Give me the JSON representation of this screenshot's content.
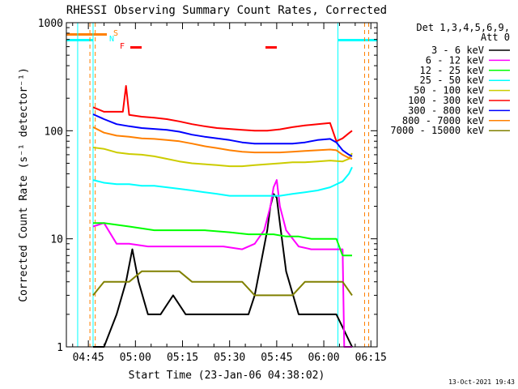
{
  "chart_data": {
    "type": "line",
    "title": "RHESSI Observing Summary Count Rates, Corrected",
    "xlabel": "Start Time (23-Jan-06 04:38:02)",
    "ylabel": "Corrected Count Rate (s⁻¹ detector⁻¹)",
    "yscale": "log",
    "ylim": [
      1,
      1000
    ],
    "xlim": [
      "04:38",
      "06:17"
    ],
    "x_ticks": [
      "04:45",
      "05:00",
      "05:15",
      "05:30",
      "05:45",
      "06:00",
      "06:15"
    ],
    "x_tick_minutes": [
      7,
      22,
      37,
      52,
      67,
      82,
      97
    ],
    "y_ticks": [
      "1",
      "10",
      "100",
      "1000"
    ],
    "y_tick_values": [
      1,
      10,
      100,
      1000
    ],
    "legend_title": "Det 1,3,4,5,6,9,",
    "legend_subtitle": "Att 0",
    "legend_position": "top-right",
    "series": [
      {
        "name": "3 - 6 keV",
        "color": "#000000",
        "x_min": [
          8.5,
          12,
          16,
          19,
          21,
          23,
          26,
          30,
          34,
          38,
          42,
          46,
          50,
          54,
          58,
          60,
          62,
          64,
          65,
          66,
          67,
          68,
          70,
          74,
          78,
          82,
          86,
          91
        ],
        "values": [
          1,
          1,
          2,
          4,
          8,
          4,
          2,
          2,
          3,
          2,
          2,
          2,
          2,
          2,
          2,
          3,
          6,
          12,
          20,
          26,
          24,
          14,
          5,
          2,
          2,
          2,
          2,
          1
        ]
      },
      {
        "name": "6 - 12 keV",
        "color": "#ff00ff",
        "x_min": [
          8.5,
          12,
          16,
          20,
          26,
          32,
          38,
          44,
          50,
          56,
          60,
          63,
          65,
          66,
          67,
          68,
          70,
          74,
          78,
          82,
          86,
          88,
          88.5,
          91
        ],
        "values": [
          13,
          14,
          9,
          9,
          8.5,
          8.5,
          8.5,
          8.5,
          8.5,
          8,
          9,
          12,
          20,
          30,
          35,
          20,
          12,
          8.5,
          8,
          8,
          8,
          8,
          1,
          1
        ]
      },
      {
        "name": "12 - 25 keV",
        "color": "#00ff00",
        "x_min": [
          8.5,
          12,
          20,
          28,
          36,
          44,
          52,
          58,
          62,
          66,
          70,
          74,
          78,
          82,
          86,
          88,
          91
        ],
        "values": [
          14,
          14,
          13,
          12,
          12,
          12,
          11.5,
          11,
          11,
          11,
          10.5,
          10.5,
          10,
          10,
          10,
          7,
          7
        ]
      },
      {
        "name": "25 - 50 keV",
        "color": "#00ffff",
        "x_min": [
          8.5,
          12,
          16,
          20,
          24,
          28,
          32,
          36,
          40,
          44,
          48,
          52,
          56,
          60,
          64,
          68,
          72,
          76,
          80,
          84,
          88,
          90,
          91
        ],
        "values": [
          35,
          33,
          32,
          32,
          31,
          31,
          30,
          29,
          28,
          27,
          26,
          25,
          25,
          25,
          25,
          25,
          26,
          27,
          28,
          30,
          34,
          40,
          46
        ]
      },
      {
        "name": "50 - 100 keV",
        "color": "#cccc00",
        "x_min": [
          8.5,
          12,
          16,
          20,
          24,
          28,
          32,
          36,
          40,
          44,
          48,
          52,
          56,
          60,
          64,
          68,
          72,
          76,
          80,
          84,
          88,
          90,
          91
        ],
        "values": [
          70,
          68,
          63,
          61,
          60,
          58,
          55,
          52,
          50,
          49,
          48,
          47,
          47,
          48,
          49,
          50,
          51,
          51,
          52,
          53,
          52,
          55,
          62
        ]
      },
      {
        "name": "100 - 300 keV",
        "color": "#ff0000",
        "x_min": [
          8.5,
          12,
          16,
          18,
          19,
          20,
          24,
          28,
          32,
          36,
          40,
          44,
          48,
          52,
          56,
          60,
          64,
          68,
          72,
          76,
          80,
          84,
          86,
          88,
          90,
          91
        ],
        "values": [
          165,
          150,
          150,
          150,
          260,
          140,
          135,
          132,
          128,
          122,
          115,
          110,
          106,
          104,
          102,
          100,
          100,
          103,
          108,
          112,
          115,
          118,
          80,
          85,
          95,
          100
        ]
      },
      {
        "name": "300 - 800 keV",
        "color": "#0000ff",
        "x_min": [
          8.5,
          12,
          16,
          20,
          24,
          28,
          32,
          36,
          40,
          44,
          48,
          52,
          56,
          60,
          64,
          68,
          72,
          76,
          80,
          84,
          86,
          88,
          90,
          91
        ],
        "values": [
          142,
          128,
          115,
          110,
          106,
          104,
          102,
          98,
          92,
          88,
          85,
          82,
          78,
          76,
          76,
          76,
          76,
          78,
          82,
          84,
          78,
          66,
          60,
          58
        ]
      },
      {
        "name": "800 - 7000 keV",
        "color": "#ff8000",
        "x_min": [
          8.5,
          12,
          16,
          20,
          24,
          28,
          32,
          36,
          40,
          44,
          48,
          52,
          56,
          60,
          64,
          68,
          72,
          76,
          80,
          84,
          86,
          88,
          90,
          91
        ],
        "values": [
          108,
          96,
          90,
          88,
          85,
          84,
          82,
          80,
          76,
          72,
          69,
          66,
          64,
          63,
          63,
          63,
          64,
          65,
          66,
          67,
          66,
          60,
          56,
          55
        ]
      },
      {
        "name": "7000 - 15000 keV",
        "color": "#808000",
        "x_min": [
          8.5,
          12,
          16,
          20,
          24,
          28,
          32,
          36,
          40,
          44,
          48,
          52,
          56,
          60,
          64,
          68,
          72,
          76,
          80,
          84,
          88,
          91
        ],
        "values": [
          3,
          4,
          4,
          4,
          5,
          5,
          5,
          5,
          4,
          4,
          4,
          4,
          4,
          3,
          3,
          3,
          3,
          4,
          4,
          4,
          4,
          3
        ]
      }
    ],
    "annotations": [
      {
        "label": "S",
        "color": "#ff8000"
      },
      {
        "label": "N",
        "color": "#00ffff"
      },
      {
        "label": "F",
        "color": "#ff0000"
      }
    ],
    "timestamp": "13-Oct-2021 19:43"
  }
}
